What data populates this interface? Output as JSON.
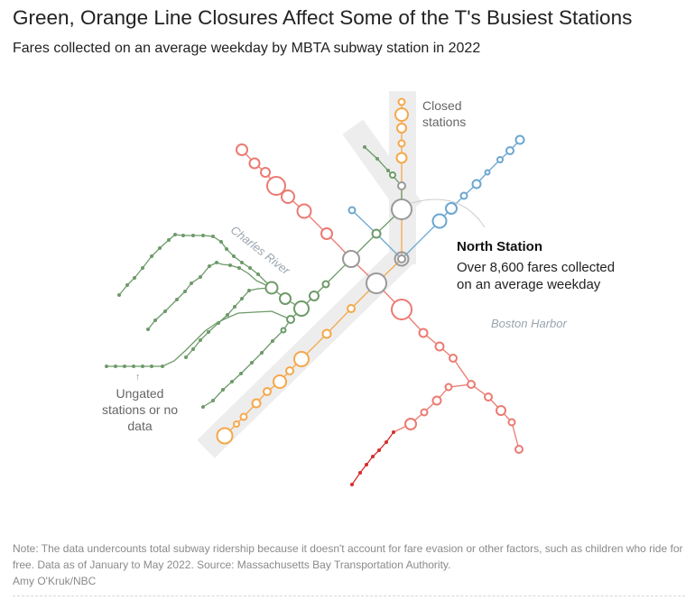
{
  "title": "Green, Orange Line Closures Affect Some of the T's Busiest Stations",
  "subtitle": "Fares collected on an average weekday by MBTA subway station in 2022",
  "annotations": {
    "closed_stations": "Closed\nstations",
    "north_station_title": "North Station",
    "north_station_desc": "Over 8,600 fares collected\non an average weekday",
    "ungated_arrow": "↑",
    "ungated": "Ungated stations or no data",
    "charles_river": "Charles River",
    "boston_harbor": "Boston Harbor"
  },
  "note": "Note: The data undercounts total subway ridership because it doesn't account for fare evasion or other factors, such as children who ride for free. Data as of January to May 2022. Source: Massachusetts Bay Transportation Authority.",
  "credit": "Amy O'Kruk/NBC",
  "colors": {
    "green_line": "#6d9a69",
    "orange_line": "#f5a84b",
    "red_line": "#ec7a72",
    "mattapan": "#d62c2c",
    "blue_line": "#6aa7d0",
    "transfer": "#999999",
    "closed_band": "#ededed"
  }
}
